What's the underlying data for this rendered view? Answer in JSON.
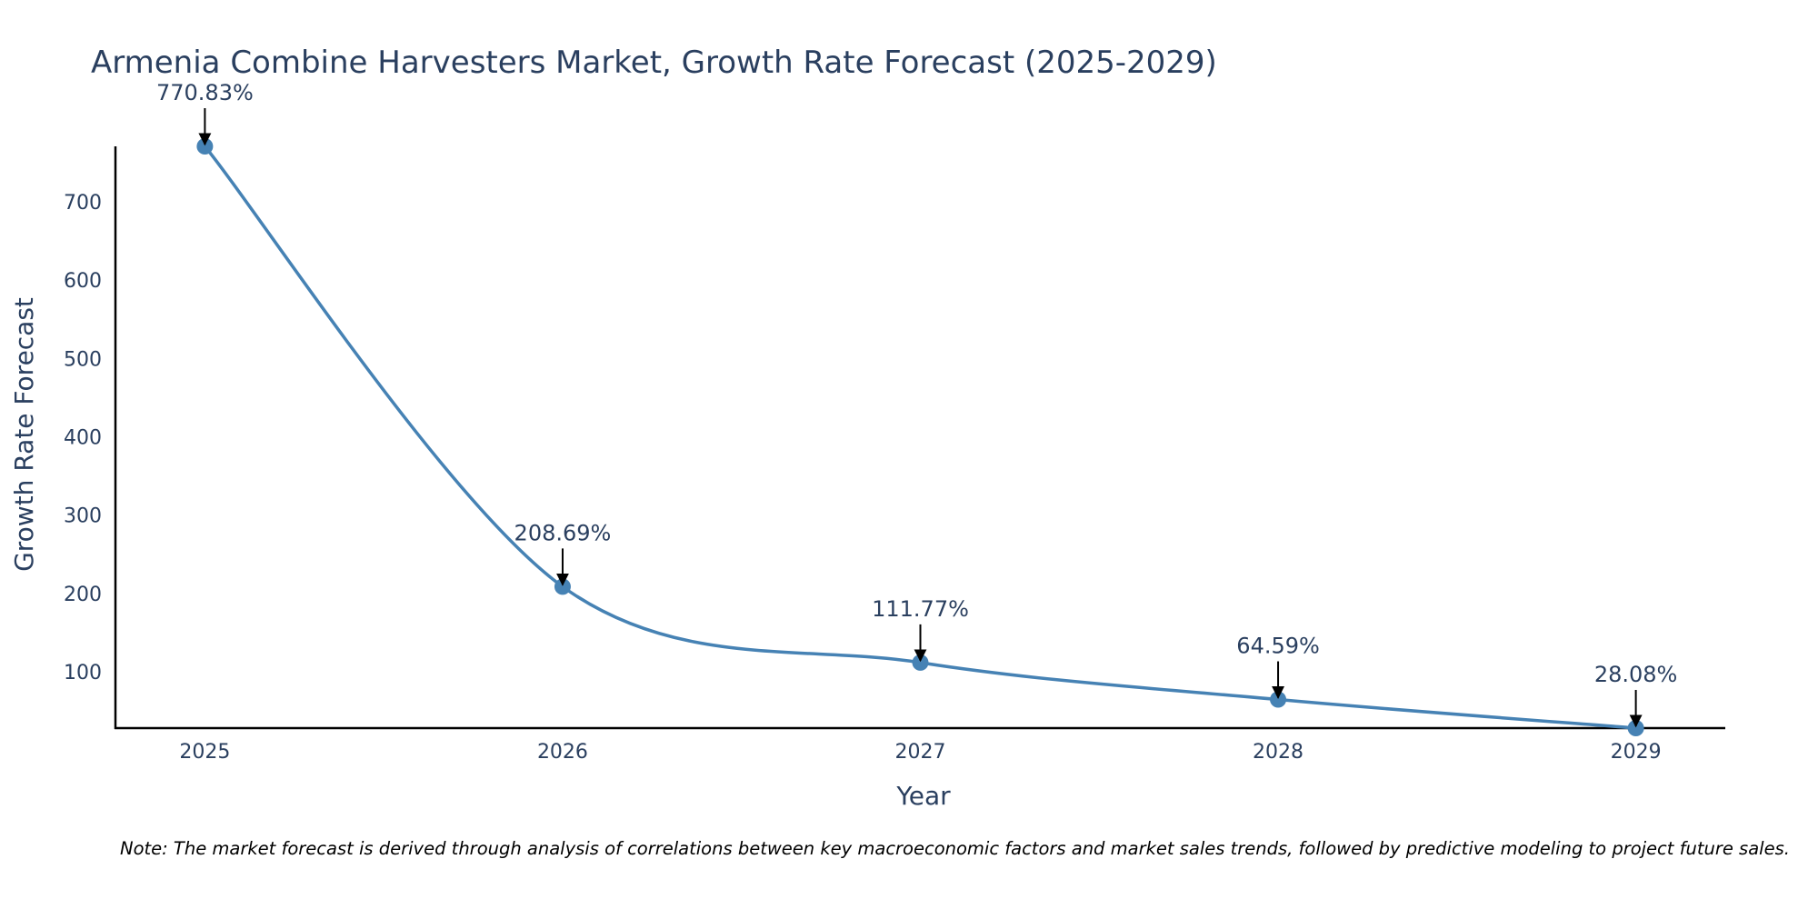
{
  "chart_data": {
    "type": "line",
    "title": "Armenia Combine Harvesters Market, Growth Rate Forecast (2025-2029)",
    "xlabel": "Year",
    "ylabel": "Growth Rate Forecast",
    "categories": [
      "2025",
      "2026",
      "2027",
      "2028",
      "2029"
    ],
    "series": [
      {
        "name": "Growth Rate Forecast",
        "values": [
          770.83,
          208.69,
          111.77,
          64.59,
          28.08
        ],
        "color": "#4682b4"
      }
    ],
    "data_labels": [
      "770.83%",
      "208.69%",
      "111.77%",
      "64.59%",
      "28.08%"
    ],
    "y_ticks": [
      100,
      200,
      300,
      400,
      500,
      600,
      700
    ],
    "ylim": [
      28.08,
      770.83
    ],
    "xlim": [
      2024.75,
      2029.25
    ],
    "grid": false,
    "line_shape": "spline"
  },
  "footnote": "Note: The market forecast is derived through analysis of correlations between key macroeconomic factors and market sales trends, followed by predictive modeling to project future sales."
}
